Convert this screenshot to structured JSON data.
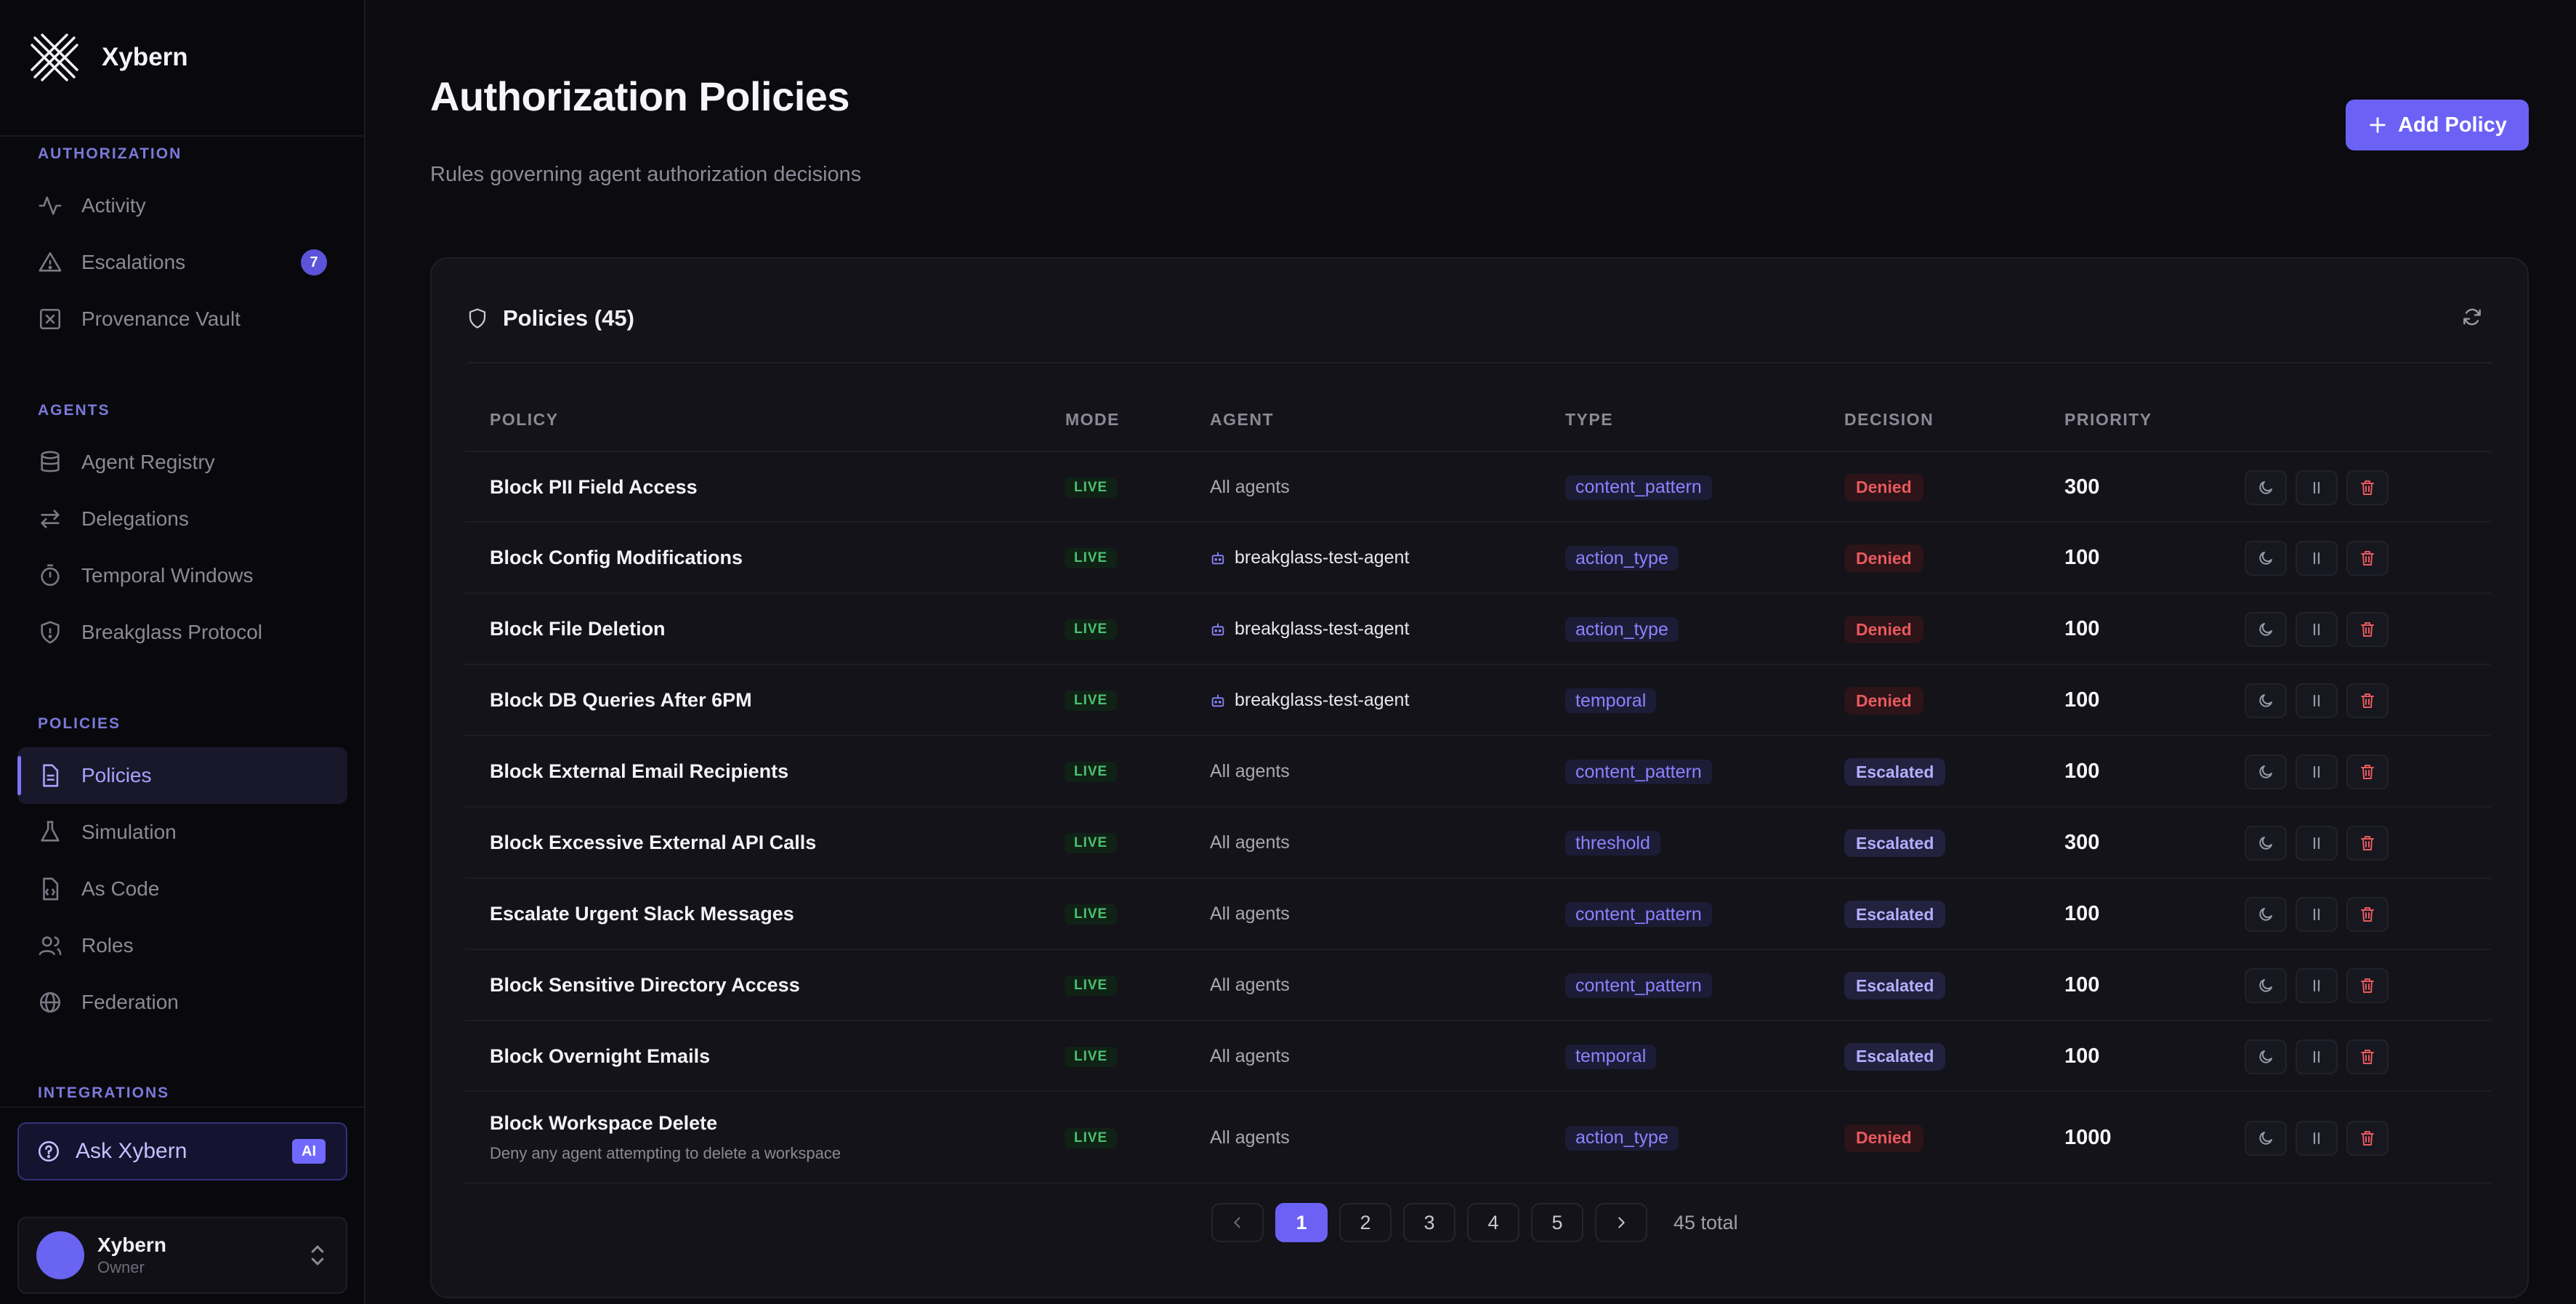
{
  "brand": {
    "name": "Xybern"
  },
  "sidebar": {
    "sections": [
      {
        "title": "AUTHORIZATION"
      },
      {
        "title": "AGENTS"
      },
      {
        "title": "POLICIES"
      },
      {
        "title": "INTEGRATIONS"
      }
    ],
    "items": [
      {
        "label": "Activity",
        "icon": "activity-icon"
      },
      {
        "label": "Escalations",
        "icon": "warning-triangle-icon",
        "badge": "7"
      },
      {
        "label": "Provenance Vault",
        "icon": "vault-icon"
      },
      {
        "label": "Agent Registry",
        "icon": "database-icon"
      },
      {
        "label": "Delegations",
        "icon": "arrows-exchange-icon"
      },
      {
        "label": "Temporal Windows",
        "icon": "timer-icon"
      },
      {
        "label": "Breakglass Protocol",
        "icon": "shield-alert-icon"
      },
      {
        "label": "Policies",
        "icon": "document-icon",
        "active": true
      },
      {
        "label": "Simulation",
        "icon": "flask-icon"
      },
      {
        "label": "As Code",
        "icon": "code-file-icon"
      },
      {
        "label": "Roles",
        "icon": "users-icon"
      },
      {
        "label": "Federation",
        "icon": "globe-icon"
      }
    ],
    "ask": {
      "label": "Ask Xybern",
      "badge": "AI"
    },
    "user": {
      "name": "Xybern",
      "role": "Owner"
    }
  },
  "header": {
    "title": "Authorization Policies",
    "subtitle": "Rules governing agent authorization decisions",
    "add_label": "Add Policy"
  },
  "card": {
    "title": "Policies (45)"
  },
  "table": {
    "columns": [
      "POLICY",
      "MODE",
      "AGENT",
      "TYPE",
      "DECISION",
      "PRIORITY"
    ],
    "rows": [
      {
        "name": "Block PII Field Access",
        "mode": "LIVE",
        "agent": "All agents",
        "type": "content_pattern",
        "decision": "Denied",
        "priority": "300"
      },
      {
        "name": "Block Config Modifications",
        "mode": "LIVE",
        "agent": "breakglass-test-agent",
        "type": "action_type",
        "decision": "Denied",
        "priority": "100"
      },
      {
        "name": "Block File Deletion",
        "mode": "LIVE",
        "agent": "breakglass-test-agent",
        "type": "action_type",
        "decision": "Denied",
        "priority": "100"
      },
      {
        "name": "Block DB Queries After 6PM",
        "mode": "LIVE",
        "agent": "breakglass-test-agent",
        "type": "temporal",
        "decision": "Denied",
        "priority": "100"
      },
      {
        "name": "Block External Email Recipients",
        "mode": "LIVE",
        "agent": "All agents",
        "type": "content_pattern",
        "decision": "Escalated",
        "priority": "100"
      },
      {
        "name": "Block Excessive External API Calls",
        "mode": "LIVE",
        "agent": "All agents",
        "type": "threshold",
        "decision": "Escalated",
        "priority": "300"
      },
      {
        "name": "Escalate Urgent Slack Messages",
        "mode": "LIVE",
        "agent": "All agents",
        "type": "content_pattern",
        "decision": "Escalated",
        "priority": "100"
      },
      {
        "name": "Block Sensitive Directory Access",
        "mode": "LIVE",
        "agent": "All agents",
        "type": "content_pattern",
        "decision": "Escalated",
        "priority": "100"
      },
      {
        "name": "Block Overnight Emails",
        "mode": "LIVE",
        "agent": "All agents",
        "type": "temporal",
        "decision": "Escalated",
        "priority": "100"
      },
      {
        "name": "Block Workspace Delete",
        "description": "Deny any agent attempting to delete a workspace",
        "mode": "LIVE",
        "agent": "All agents",
        "type": "action_type",
        "decision": "Denied",
        "priority": "1000"
      }
    ]
  },
  "pagination": {
    "pages": [
      "1",
      "2",
      "3",
      "4",
      "5"
    ],
    "current": "1",
    "total": "45 total"
  },
  "colors": {
    "accent": "#6b62f5",
    "denied": "#e7595e",
    "live": "#4cc06f",
    "escalated": "#b3aeff"
  }
}
